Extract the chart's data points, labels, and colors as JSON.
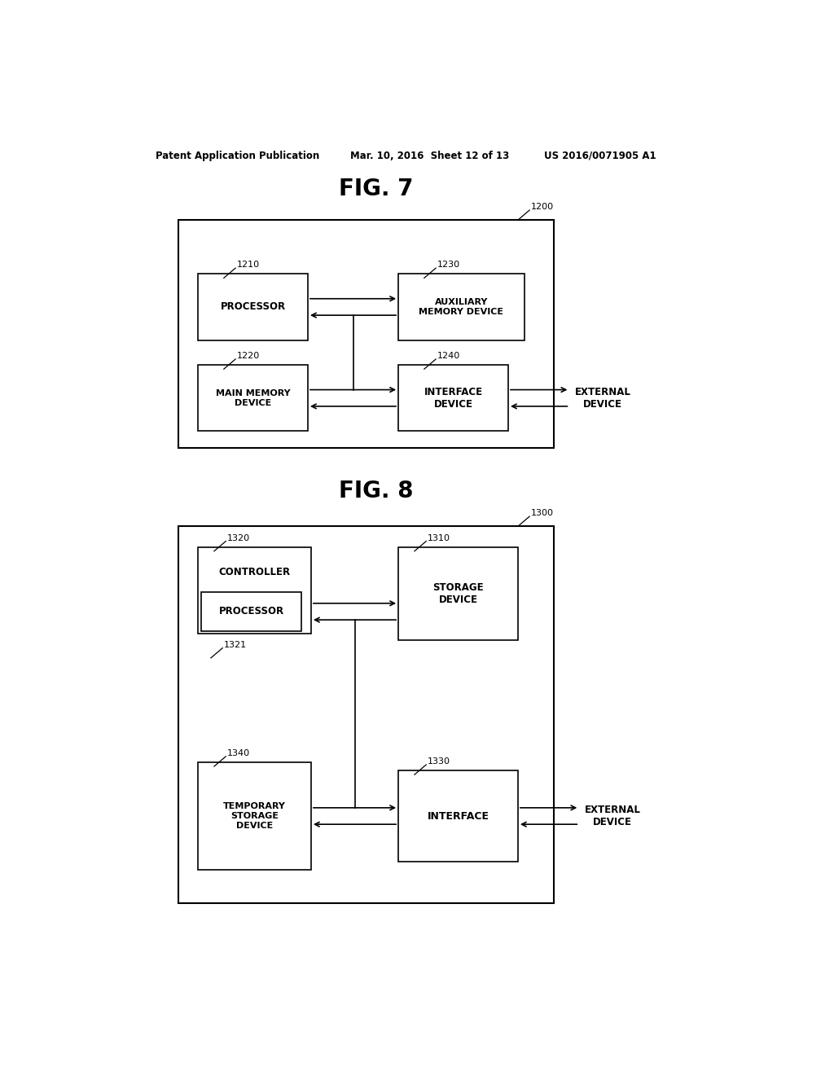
{
  "bg_color": "#ffffff",
  "header_text": "Patent Application Publication",
  "header_date": "Mar. 10, 2016  Sheet 12 of 13",
  "header_patent": "US 2016/0071905 A1",
  "fig7_title": "FIG. 7",
  "fig8_title": "FIG. 8",
  "fig7_label": "1200",
  "fig8_label": "1300"
}
